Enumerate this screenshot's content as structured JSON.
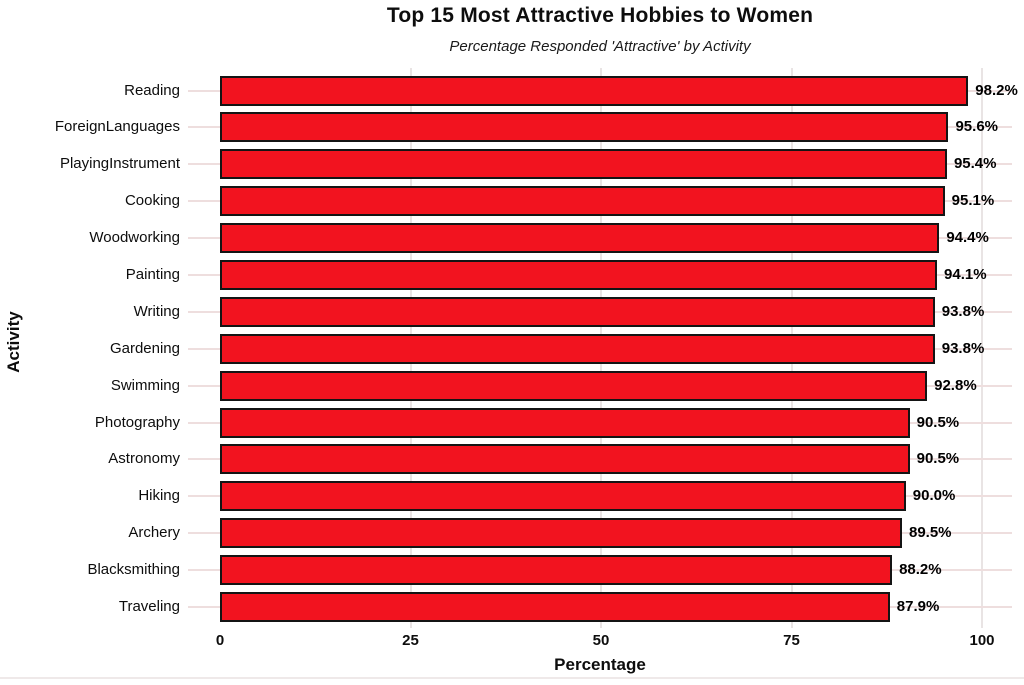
{
  "chart_data": {
    "type": "bar",
    "orientation": "horizontal",
    "title": "Top 15 Most Attractive Hobbies to Women",
    "subtitle": "Percentage Responded 'Attractive' by Activity",
    "xlabel": "Percentage",
    "ylabel": "Activity",
    "xlim": [
      0,
      100
    ],
    "x_ticks": [
      "0",
      "25",
      "50",
      "75",
      "100"
    ],
    "grid": true,
    "legend": "none",
    "bar_color": "#f2131f",
    "bar_border_color": "#141414",
    "categories": [
      "Reading",
      "ForeignLanguages",
      "PlayingInstrument",
      "Cooking",
      "Woodworking",
      "Painting",
      "Writing",
      "Gardening",
      "Swimming",
      "Photography",
      "Astronomy",
      "Hiking",
      "Archery",
      "Blacksmithing",
      "Traveling"
    ],
    "values": [
      98.2,
      95.6,
      95.4,
      95.1,
      94.4,
      94.1,
      93.8,
      93.8,
      92.8,
      90.5,
      90.5,
      90.0,
      89.5,
      88.2,
      87.9
    ],
    "value_labels": [
      "98.2%",
      "95.6%",
      "95.4%",
      "95.1%",
      "94.4%",
      "94.1%",
      "93.8%",
      "93.8%",
      "92.8%",
      "90.5%",
      "90.5%",
      "90.0%",
      "89.5%",
      "88.2%",
      "87.9%"
    ]
  }
}
